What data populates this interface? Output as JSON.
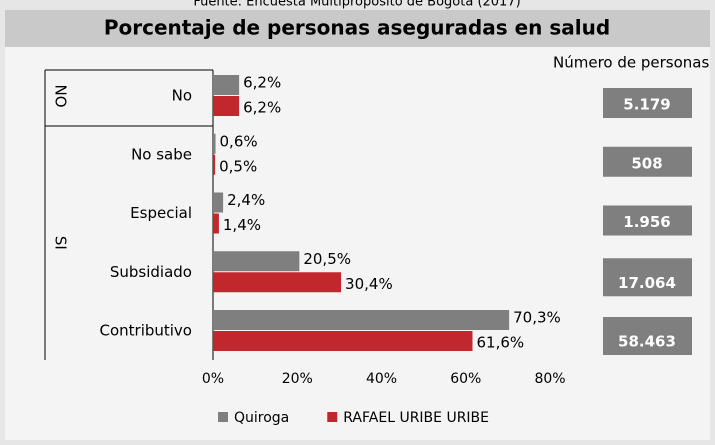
{
  "source": "Fuente: Encuesta Multipropósito de Bogotá (2017)",
  "chart_data": {
    "type": "bar",
    "orientation": "horizontal",
    "title": "Porcentaje de personas aseguradas en salud",
    "categories": [
      "No",
      "No sabe",
      "Especial",
      "Subsidiado",
      "Contributivo"
    ],
    "groups": [
      "NO",
      "SI"
    ],
    "series": [
      {
        "name": "Quiroga",
        "color": "#7f7f7f",
        "values": [
          6.2,
          0.6,
          2.4,
          20.5,
          70.3
        ],
        "value_labels": [
          "6,2%",
          "0,6%",
          "2,4%",
          "20,5%",
          "70,3%"
        ]
      },
      {
        "name": "RAFAEL URIBE URIBE",
        "color": "#c1272d",
        "values": [
          6.2,
          0.5,
          1.4,
          30.4,
          61.6
        ],
        "value_labels": [
          "6,2%",
          "0,5%",
          "1,4%",
          "30,4%",
          "61,6%"
        ]
      }
    ],
    "xlim": [
      0,
      80
    ],
    "xticks": [
      {
        "value": 0,
        "label": "0%"
      },
      {
        "value": 20,
        "label": "20%"
      },
      {
        "value": 40,
        "label": "40%"
      },
      {
        "value": 60,
        "label": "60%"
      },
      {
        "value": 80,
        "label": "80%"
      }
    ],
    "counts": {
      "label": "Número de personas",
      "values": [
        5179,
        508,
        1956,
        17064,
        58463
      ],
      "value_labels": [
        "5.179",
        "508",
        "1.956",
        "17.064",
        "58.463"
      ]
    },
    "legend": "bottom"
  }
}
